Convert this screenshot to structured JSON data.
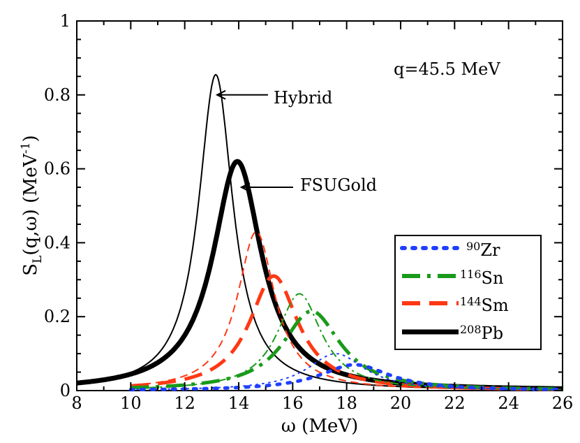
{
  "chart_data": {
    "type": "line",
    "xlabel": "ω (MeV)",
    "ylabel_main": "S",
    "ylabel_sub": "L",
    "ylabel_mid": "(q,ω) (MeV",
    "ylabel_sup": "-1",
    "ylabel_end": ")",
    "xlim": [
      8,
      26
    ],
    "ylim": [
      0,
      1
    ],
    "x_ticks": [
      8,
      10,
      12,
      14,
      16,
      18,
      20,
      22,
      24,
      26
    ],
    "y_ticks": [
      0,
      0.2,
      0.4,
      0.6,
      0.8,
      1
    ],
    "x_tick_labels": [
      "8",
      "10",
      "12",
      "14",
      "16",
      "18",
      "20",
      "22",
      "24",
      "26"
    ],
    "y_tick_labels": [
      "0",
      "0.2",
      "0.4",
      "0.6",
      "0.8",
      "1"
    ],
    "annotations": {
      "q_label": "q=45.5 MeV",
      "hybrid_label": "Hybrid",
      "fsugold_label": "FSUGold",
      "hybrid_arrow_tip": [
        13.2,
        0.8
      ],
      "fsugold_arrow_tip": [
        14.1,
        0.55
      ]
    },
    "legend": {
      "position": "bottom-right",
      "entries": [
        {
          "mass": "90",
          "element": "Zr",
          "color": "#1f3fff",
          "style": "dotted"
        },
        {
          "mass": "116",
          "element": "Sn",
          "color": "#1a9a1a",
          "style": "dashdot"
        },
        {
          "mass": "144",
          "element": "Sm",
          "color": "#ff3814",
          "style": "dashed"
        },
        {
          "mass": "208",
          "element": "Pb",
          "color": "#000000",
          "style": "solid"
        }
      ]
    },
    "series": [
      {
        "name": "208Pb Hybrid",
        "model": "Hybrid",
        "color": "#000000",
        "style": "solid",
        "width": "thin",
        "peak_x": 13.15,
        "peak_y": 0.855,
        "gamma": 1.55
      },
      {
        "name": "208Pb FSUGold",
        "model": "FSUGold",
        "color": "#000000",
        "style": "solid",
        "width": "thick",
        "peak_x": 13.95,
        "peak_y": 0.62,
        "gamma": 2.2
      },
      {
        "name": "144Sm Hybrid",
        "model": "Hybrid",
        "color": "#ff3814",
        "style": "dashed",
        "width": "thin",
        "peak_x": 14.65,
        "peak_y": 0.43,
        "gamma": 1.7
      },
      {
        "name": "144Sm FSUGold",
        "model": "FSUGold",
        "color": "#ff3814",
        "style": "dashed",
        "width": "thick",
        "peak_x": 15.3,
        "peak_y": 0.31,
        "gamma": 2.2
      },
      {
        "name": "116Sn Hybrid",
        "model": "Hybrid",
        "color": "#1a9a1a",
        "style": "dashdot",
        "width": "thin",
        "peak_x": 16.25,
        "peak_y": 0.262,
        "gamma": 2.0
      },
      {
        "name": "116Sn FSUGold",
        "model": "FSUGold",
        "color": "#1a9a1a",
        "style": "dashdot",
        "width": "thick",
        "peak_x": 16.7,
        "peak_y": 0.215,
        "gamma": 2.6
      },
      {
        "name": "90Zr Hybrid",
        "model": "Hybrid",
        "color": "#1f3fff",
        "style": "dotted",
        "width": "thin",
        "peak_x": 17.6,
        "peak_y": 0.1,
        "gamma": 2.6
      },
      {
        "name": "90Zr FSUGold",
        "model": "FSUGold",
        "color": "#1f3fff",
        "style": "dotted",
        "width": "thick",
        "peak_x": 18.3,
        "peak_y": 0.07,
        "gamma": 3.2
      }
    ]
  }
}
